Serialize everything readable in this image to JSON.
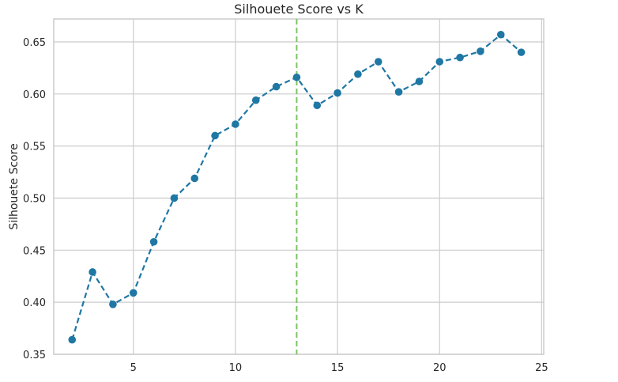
{
  "chart_data": {
    "type": "line",
    "title": "Silhouete Score vs K",
    "xlabel": "",
    "ylabel": "Silhouete Score",
    "x": [
      2,
      3,
      4,
      5,
      6,
      7,
      8,
      9,
      10,
      11,
      12,
      13,
      14,
      15,
      16,
      17,
      18,
      19,
      20,
      21,
      22,
      23,
      24
    ],
    "series": [
      {
        "values": [
          0.364,
          0.429,
          0.398,
          0.409,
          0.458,
          0.5,
          0.519,
          0.56,
          0.571,
          0.594,
          0.607,
          0.616,
          0.589,
          0.601,
          0.619,
          0.631,
          0.602,
          0.612,
          0.631,
          0.635,
          0.641,
          0.657,
          0.64
        ],
        "color": "#1f77a4"
      }
    ],
    "vline_x": 13,
    "vline_color": "#7cc462",
    "xlim": [
      1.1,
      25.1
    ],
    "ylim": [
      0.35,
      0.672
    ],
    "xticks": [
      5,
      10,
      15,
      20,
      25
    ],
    "xtick_labels": [
      "5",
      "10",
      "15",
      "20",
      "25"
    ],
    "yticks": [
      0.35,
      0.4,
      0.45,
      0.5,
      0.55,
      0.6,
      0.65
    ],
    "ytick_labels": [
      "0.35",
      "0.40",
      "0.45",
      "0.50",
      "0.55",
      "0.60",
      "0.65"
    ],
    "grid": true
  }
}
